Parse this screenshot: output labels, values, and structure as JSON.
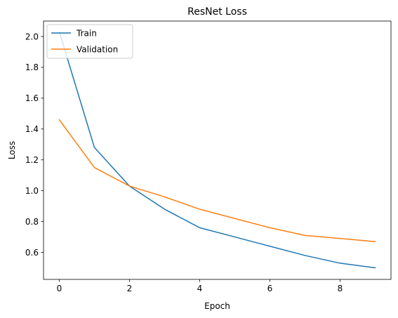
{
  "chart_data": {
    "type": "line",
    "title": "ResNet Loss",
    "xlabel": "Epoch",
    "ylabel": "Loss",
    "x": [
      0,
      1,
      2,
      3,
      4,
      5,
      6,
      7,
      8,
      9
    ],
    "xlim": [
      -0.45,
      9.45
    ],
    "ylim": [
      0.425,
      2.1
    ],
    "xticks": [
      0,
      2,
      4,
      6,
      8
    ],
    "yticks": [
      0.6,
      0.8,
      1.0,
      1.2,
      1.4,
      1.6,
      1.8,
      2.0
    ],
    "xtick_labels": [
      "0",
      "2",
      "4",
      "6",
      "8"
    ],
    "ytick_labels": [
      "0.6",
      "0.8",
      "1.0",
      "1.2",
      "1.4",
      "1.6",
      "1.8",
      "2.0"
    ],
    "grid": false,
    "legend_position": "upper left",
    "series": [
      {
        "name": "Train",
        "color": "#1f77b4",
        "values": [
          2.03,
          1.28,
          1.03,
          0.88,
          0.76,
          0.7,
          0.64,
          0.58,
          0.53,
          0.5
        ]
      },
      {
        "name": "Validation",
        "color": "#ff7f0e",
        "values": [
          1.46,
          1.15,
          1.03,
          0.96,
          0.88,
          0.82,
          0.76,
          0.71,
          0.69,
          0.67
        ]
      }
    ]
  }
}
